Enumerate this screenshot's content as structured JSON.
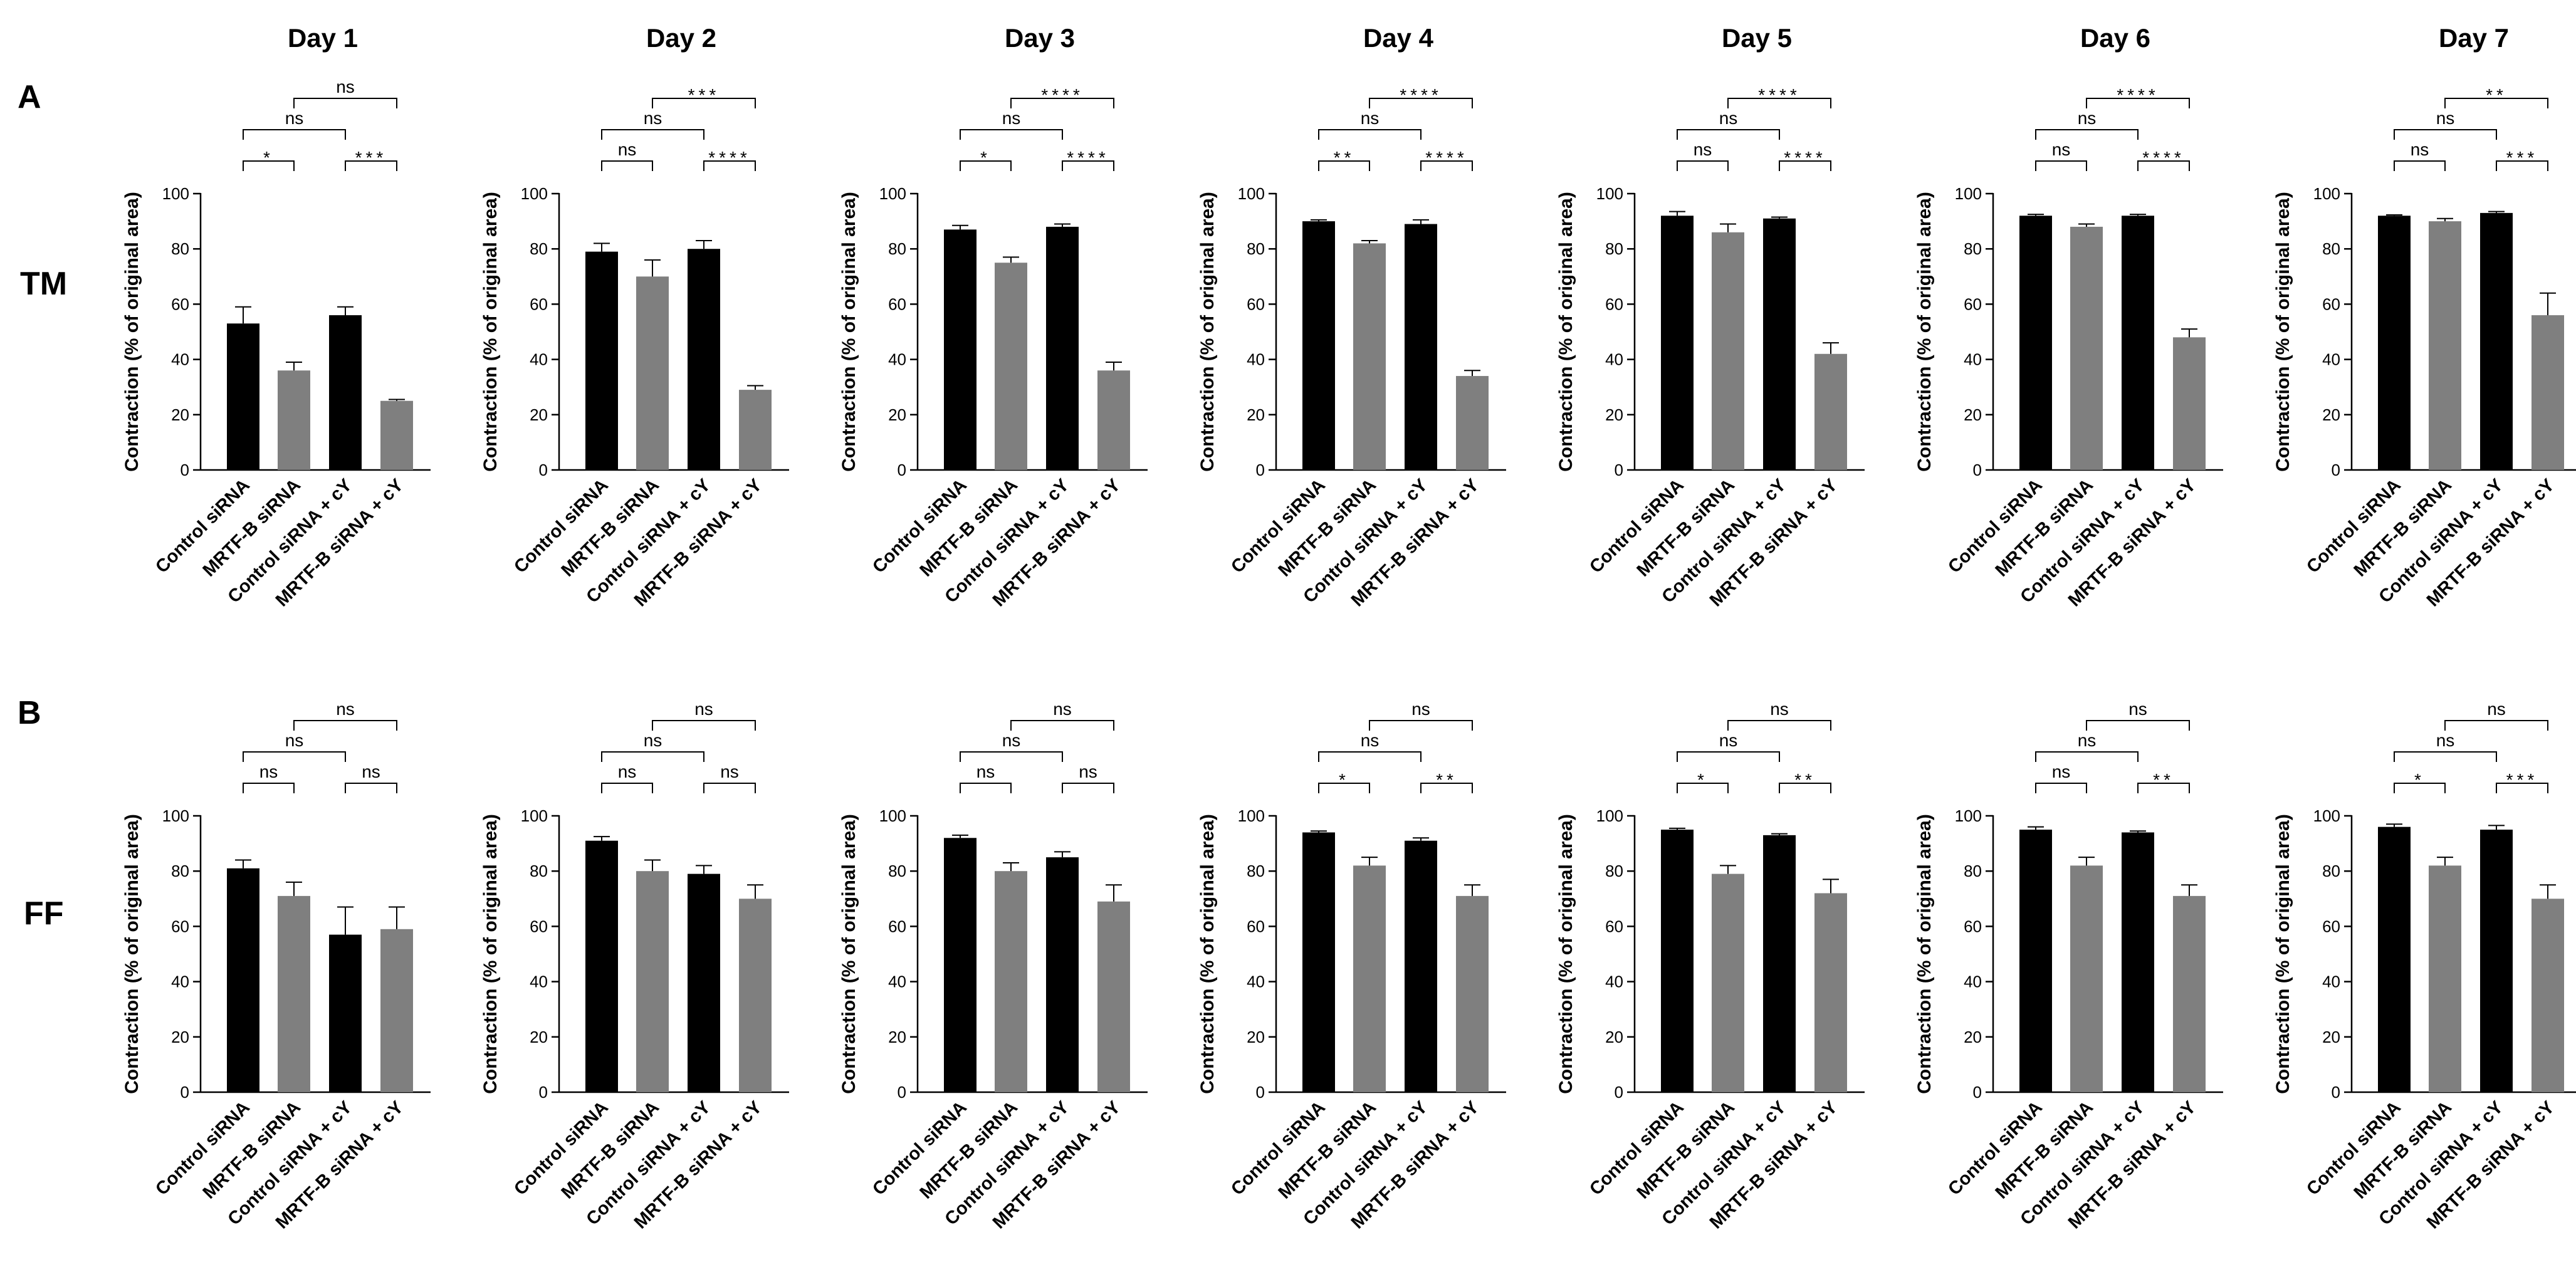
{
  "panels": [
    {
      "letter": "A",
      "row_label": "TM"
    },
    {
      "letter": "B",
      "row_label": "FF"
    }
  ],
  "days": [
    "Day 1",
    "Day 2",
    "Day 3",
    "Day 4",
    "Day 5",
    "Day 6",
    "Day 7"
  ],
  "colors": {
    "black_bar": "#000000",
    "gray_bar": "#7f7f7f",
    "bracket": "#000000"
  },
  "chart_data": {
    "type": "bar",
    "ylabel": "Contraction (% of original area)",
    "ylim": [
      0,
      100
    ],
    "yticks": [
      0,
      20,
      40,
      60,
      80,
      100
    ],
    "categories": [
      "Control siRNA",
      "MRTF-B siRNA",
      "Control siRNA + cY",
      "MRTF-B siRNA + cY"
    ],
    "bar_colors": [
      "black",
      "gray",
      "black",
      "gray"
    ],
    "comparisons": [
      [
        0,
        1
      ],
      [
        2,
        3
      ],
      [
        0,
        2
      ],
      [
        1,
        3
      ]
    ],
    "rows": [
      {
        "label": "TM",
        "panels": [
          {
            "day": "Day 1",
            "values": [
              53,
              36,
              56,
              25
            ],
            "errors": [
              6,
              3,
              3,
              0.5
            ],
            "sig": [
              "*",
              "***",
              "ns",
              "ns"
            ]
          },
          {
            "day": "Day 2",
            "values": [
              79,
              70,
              80,
              29
            ],
            "errors": [
              3,
              6,
              3,
              1.5
            ],
            "sig": [
              "ns",
              "****",
              "ns",
              "***"
            ]
          },
          {
            "day": "Day 3",
            "values": [
              87,
              75,
              88,
              36
            ],
            "errors": [
              1.5,
              2,
              1,
              3
            ],
            "sig": [
              "*",
              "****",
              "ns",
              "****"
            ]
          },
          {
            "day": "Day 4",
            "values": [
              90,
              82,
              89,
              34
            ],
            "errors": [
              0.5,
              1,
              1.5,
              2
            ],
            "sig": [
              "**",
              "****",
              "ns",
              "****"
            ]
          },
          {
            "day": "Day 5",
            "values": [
              92,
              86,
              91,
              42
            ],
            "errors": [
              1.5,
              3,
              0.5,
              4
            ],
            "sig": [
              "ns",
              "****",
              "ns",
              "****"
            ]
          },
          {
            "day": "Day 6",
            "values": [
              92,
              88,
              92,
              48
            ],
            "errors": [
              0.5,
              1,
              0.5,
              3
            ],
            "sig": [
              "ns",
              "****",
              "ns",
              "****"
            ]
          },
          {
            "day": "Day 7",
            "values": [
              92,
              90,
              93,
              56
            ],
            "errors": [
              0.3,
              1,
              0.5,
              8
            ],
            "sig": [
              "ns",
              "***",
              "ns",
              "**"
            ]
          }
        ]
      },
      {
        "label": "FF",
        "panels": [
          {
            "day": "Day 1",
            "values": [
              81,
              71,
              57,
              59
            ],
            "errors": [
              3,
              5,
              10,
              8
            ],
            "sig": [
              "ns",
              "ns",
              "ns",
              "ns"
            ]
          },
          {
            "day": "Day 2",
            "values": [
              91,
              80,
              79,
              70
            ],
            "errors": [
              1.5,
              4,
              3,
              5
            ],
            "sig": [
              "ns",
              "ns",
              "ns",
              "ns"
            ]
          },
          {
            "day": "Day 3",
            "values": [
              92,
              80,
              85,
              69
            ],
            "errors": [
              1,
              3,
              2,
              6
            ],
            "sig": [
              "ns",
              "ns",
              "ns",
              "ns"
            ]
          },
          {
            "day": "Day 4",
            "values": [
              94,
              82,
              91,
              71
            ],
            "errors": [
              0.5,
              3,
              1,
              4
            ],
            "sig": [
              "*",
              "**",
              "ns",
              "ns"
            ]
          },
          {
            "day": "Day 5",
            "values": [
              95,
              79,
              93,
              72
            ],
            "errors": [
              0.5,
              3,
              0.5,
              5
            ],
            "sig": [
              "*",
              "**",
              "ns",
              "ns"
            ]
          },
          {
            "day": "Day 6",
            "values": [
              95,
              82,
              94,
              71
            ],
            "errors": [
              1,
              3,
              0.5,
              4
            ],
            "sig": [
              "ns",
              "**",
              "ns",
              "ns"
            ]
          },
          {
            "day": "Day 7",
            "values": [
              96,
              82,
              95,
              70
            ],
            "errors": [
              1,
              3,
              1.5,
              5
            ],
            "sig": [
              "*",
              "***",
              "ns",
              "ns"
            ]
          }
        ]
      }
    ]
  }
}
